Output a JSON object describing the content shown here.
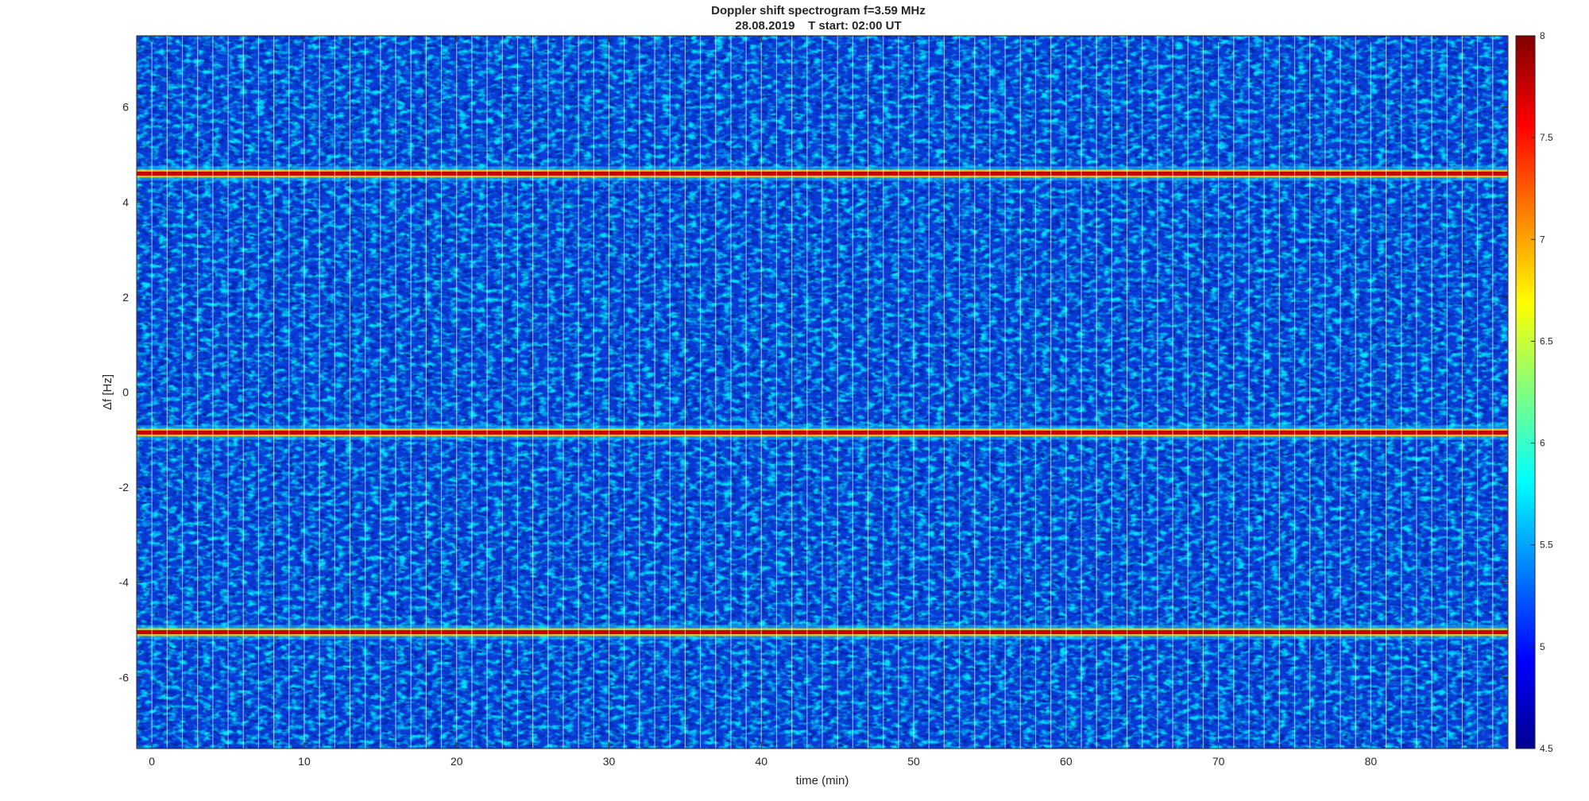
{
  "chart_data": {
    "type": "heatmap",
    "title": "Doppler shift spectrogram f=3.59 MHz",
    "subtitle": "28.08.2019    T start: 02:00 UT",
    "xlabel": "time (min)",
    "ylabel": "Δf [Hz]",
    "xlim": [
      -1,
      89
    ],
    "ylim": [
      -7.5,
      7.5
    ],
    "xticks": [
      0,
      10,
      20,
      30,
      40,
      50,
      60,
      70,
      80
    ],
    "yticks": [
      -6,
      -4,
      -2,
      0,
      2,
      4,
      6
    ],
    "colorbar": {
      "colormap": "jet",
      "clim": [
        4.5,
        8
      ],
      "ticks": [
        4.5,
        5,
        5.5,
        6,
        6.5,
        7,
        7.5,
        8
      ]
    },
    "grid": false,
    "traces": [
      {
        "name": "",
        "doppler_hz": 4.6
      },
      {
        "name": "",
        "doppler_hz": -0.85
      },
      {
        "name": "",
        "doppler_hz": -5.05
      }
    ],
    "segment_duration_min": 1,
    "colors": {
      "background_intensity": "#0a3cd8",
      "trace_peak": "#c80000",
      "trace_mid": "#ffd000"
    }
  }
}
